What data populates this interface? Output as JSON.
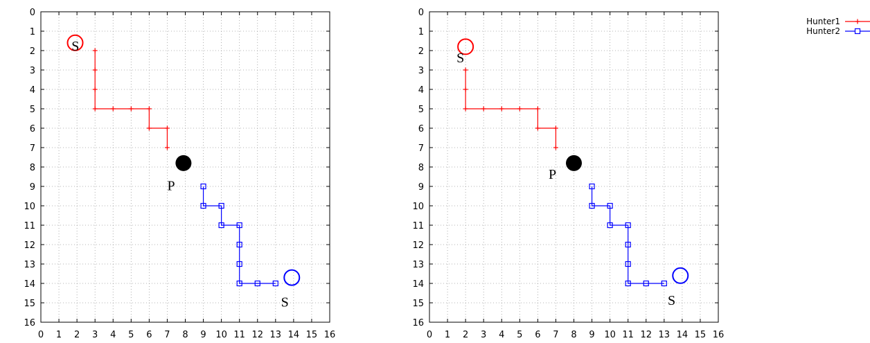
{
  "chart_data": [
    {
      "type": "line",
      "xlim": [
        0,
        16
      ],
      "ylim": [
        0,
        16
      ],
      "y_axis": "inverted",
      "x_ticks": [
        "0",
        "1",
        "2",
        "3",
        "4",
        "5",
        "6",
        "7",
        "8",
        "9",
        "10",
        "11",
        "12",
        "13",
        "14",
        "15",
        "16"
      ],
      "y_ticks": [
        "0",
        "1",
        "2",
        "3",
        "4",
        "5",
        "6",
        "7",
        "8",
        "9",
        "10",
        "11",
        "12",
        "13",
        "14",
        "15",
        "16"
      ],
      "grid": true,
      "series": [
        {
          "name": "Hunter1",
          "color": "#ff0000",
          "marker": "plus",
          "points": [
            [
              3,
              2
            ],
            [
              3,
              3
            ],
            [
              3,
              4
            ],
            [
              3,
              5
            ],
            [
              4,
              5
            ],
            [
              5,
              5
            ],
            [
              6,
              5
            ],
            [
              6,
              6
            ],
            [
              7,
              6
            ],
            [
              7,
              7
            ]
          ]
        },
        {
          "name": "Hunter2",
          "color": "#0000ff",
          "marker": "square",
          "points": [
            [
              9,
              9
            ],
            [
              9,
              10
            ],
            [
              10,
              10
            ],
            [
              10,
              11
            ],
            [
              11,
              11
            ],
            [
              11,
              12
            ],
            [
              11,
              13
            ],
            [
              11,
              14
            ],
            [
              12,
              14
            ],
            [
              13,
              14
            ]
          ]
        }
      ],
      "annotations": [
        {
          "text": "S",
          "x": 1.7,
          "y": 2.0,
          "circle_color": "#ff0000",
          "circle_x": 1.9,
          "circle_y": 1.6
        },
        {
          "text": "P",
          "x": 7.0,
          "y": 9.2,
          "dot_x": 7.9,
          "dot_y": 7.8
        },
        {
          "text": "S",
          "x": 13.3,
          "y": 15.2,
          "circle_color": "#0000ff",
          "circle_x": 13.9,
          "circle_y": 13.7
        }
      ]
    },
    {
      "type": "line",
      "xlim": [
        0,
        16
      ],
      "ylim": [
        0,
        16
      ],
      "y_axis": "inverted",
      "x_ticks": [
        "0",
        "1",
        "2",
        "3",
        "4",
        "5",
        "6",
        "7",
        "8",
        "9",
        "10",
        "11",
        "12",
        "13",
        "14",
        "15",
        "16"
      ],
      "y_ticks": [
        "0",
        "1",
        "2",
        "3",
        "4",
        "5",
        "6",
        "7",
        "8",
        "9",
        "10",
        "11",
        "12",
        "13",
        "14",
        "15",
        "16"
      ],
      "grid": true,
      "series": [
        {
          "name": "Hunter1",
          "color": "#ff0000",
          "marker": "plus",
          "points": [
            [
              2,
              3
            ],
            [
              2,
              4
            ],
            [
              2,
              5
            ],
            [
              3,
              5
            ],
            [
              4,
              5
            ],
            [
              5,
              5
            ],
            [
              6,
              5
            ],
            [
              6,
              6
            ],
            [
              7,
              6
            ],
            [
              7,
              7
            ]
          ]
        },
        {
          "name": "Hunter2",
          "color": "#0000ff",
          "marker": "square",
          "points": [
            [
              9,
              9
            ],
            [
              9,
              10
            ],
            [
              10,
              10
            ],
            [
              10,
              11
            ],
            [
              11,
              11
            ],
            [
              11,
              12
            ],
            [
              11,
              13
            ],
            [
              11,
              14
            ],
            [
              12,
              14
            ],
            [
              13,
              14
            ]
          ]
        }
      ],
      "annotations": [
        {
          "text": "S",
          "x": 1.5,
          "y": 2.6,
          "circle_color": "#ff0000",
          "circle_x": 2.0,
          "circle_y": 1.8
        },
        {
          "text": "P",
          "x": 6.6,
          "y": 8.6,
          "dot_x": 8.0,
          "dot_y": 7.8
        },
        {
          "text": "S",
          "x": 13.2,
          "y": 15.1,
          "circle_color": "#0000ff",
          "circle_x": 13.9,
          "circle_y": 13.6
        }
      ]
    }
  ],
  "legend": {
    "placement": "top-right",
    "entries": [
      {
        "label": "Hunter1",
        "color": "#ff0000",
        "marker": "plus"
      },
      {
        "label": "Hunter2",
        "color": "#0000ff",
        "marker": "square"
      }
    ]
  }
}
